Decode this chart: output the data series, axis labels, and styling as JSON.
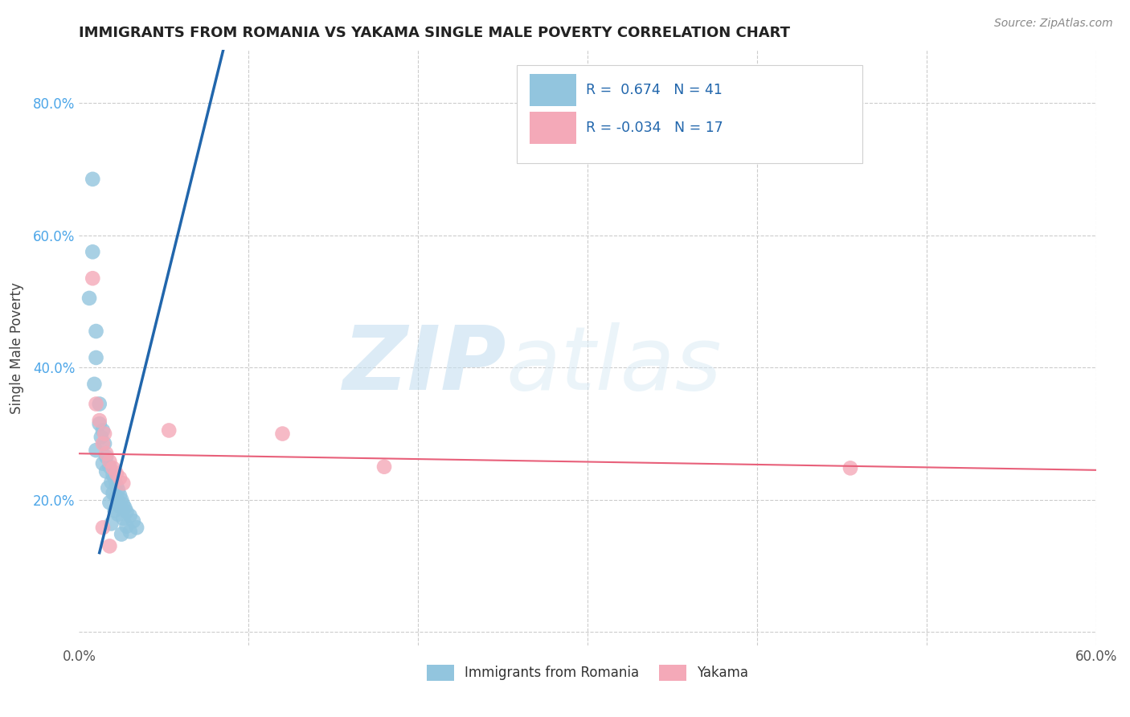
{
  "title": "IMMIGRANTS FROM ROMANIA VS YAKAMA SINGLE MALE POVERTY CORRELATION CHART",
  "source": "Source: ZipAtlas.com",
  "ylabel": "Single Male Poverty",
  "xlim": [
    0.0,
    0.6
  ],
  "ylim": [
    -0.02,
    0.88
  ],
  "xticks": [
    0.0,
    0.1,
    0.2,
    0.3,
    0.4,
    0.5,
    0.6
  ],
  "yticks": [
    0.0,
    0.2,
    0.4,
    0.6,
    0.8
  ],
  "watermark_zip": "ZIP",
  "watermark_atlas": "atlas",
  "blue_color": "#92c5de",
  "pink_color": "#f4a9b8",
  "blue_line_color": "#2166ac",
  "pink_line_color": "#e8607a",
  "grid_color": "#cccccc",
  "blue_scatter": [
    [
      0.008,
      0.685
    ],
    [
      0.008,
      0.575
    ],
    [
      0.006,
      0.505
    ],
    [
      0.01,
      0.455
    ],
    [
      0.01,
      0.415
    ],
    [
      0.009,
      0.375
    ],
    [
      0.012,
      0.345
    ],
    [
      0.012,
      0.315
    ],
    [
      0.014,
      0.305
    ],
    [
      0.013,
      0.295
    ],
    [
      0.015,
      0.285
    ],
    [
      0.01,
      0.275
    ],
    [
      0.016,
      0.265
    ],
    [
      0.014,
      0.255
    ],
    [
      0.018,
      0.25
    ],
    [
      0.016,
      0.243
    ],
    [
      0.02,
      0.238
    ],
    [
      0.021,
      0.232
    ],
    [
      0.019,
      0.227
    ],
    [
      0.022,
      0.222
    ],
    [
      0.017,
      0.218
    ],
    [
      0.023,
      0.215
    ],
    [
      0.02,
      0.21
    ],
    [
      0.024,
      0.207
    ],
    [
      0.022,
      0.204
    ],
    [
      0.025,
      0.2
    ],
    [
      0.018,
      0.196
    ],
    [
      0.026,
      0.193
    ],
    [
      0.024,
      0.19
    ],
    [
      0.027,
      0.188
    ],
    [
      0.021,
      0.184
    ],
    [
      0.028,
      0.182
    ],
    [
      0.023,
      0.178
    ],
    [
      0.03,
      0.176
    ],
    [
      0.026,
      0.172
    ],
    [
      0.032,
      0.168
    ],
    [
      0.019,
      0.164
    ],
    [
      0.028,
      0.16
    ],
    [
      0.034,
      0.158
    ],
    [
      0.03,
      0.152
    ],
    [
      0.025,
      0.148
    ]
  ],
  "pink_scatter": [
    [
      0.008,
      0.535
    ],
    [
      0.01,
      0.345
    ],
    [
      0.012,
      0.32
    ],
    [
      0.015,
      0.3
    ],
    [
      0.014,
      0.285
    ],
    [
      0.016,
      0.27
    ],
    [
      0.018,
      0.258
    ],
    [
      0.02,
      0.248
    ],
    [
      0.022,
      0.24
    ],
    [
      0.024,
      0.233
    ],
    [
      0.026,
      0.225
    ],
    [
      0.014,
      0.158
    ],
    [
      0.018,
      0.13
    ],
    [
      0.18,
      0.25
    ],
    [
      0.12,
      0.3
    ],
    [
      0.053,
      0.305
    ],
    [
      0.455,
      0.248
    ]
  ],
  "blue_line_x": [
    0.012,
    0.085
  ],
  "blue_line_y": [
    0.12,
    0.88
  ],
  "pink_line_x": [
    0.0,
    0.6
  ],
  "pink_line_y": [
    0.27,
    0.245
  ]
}
